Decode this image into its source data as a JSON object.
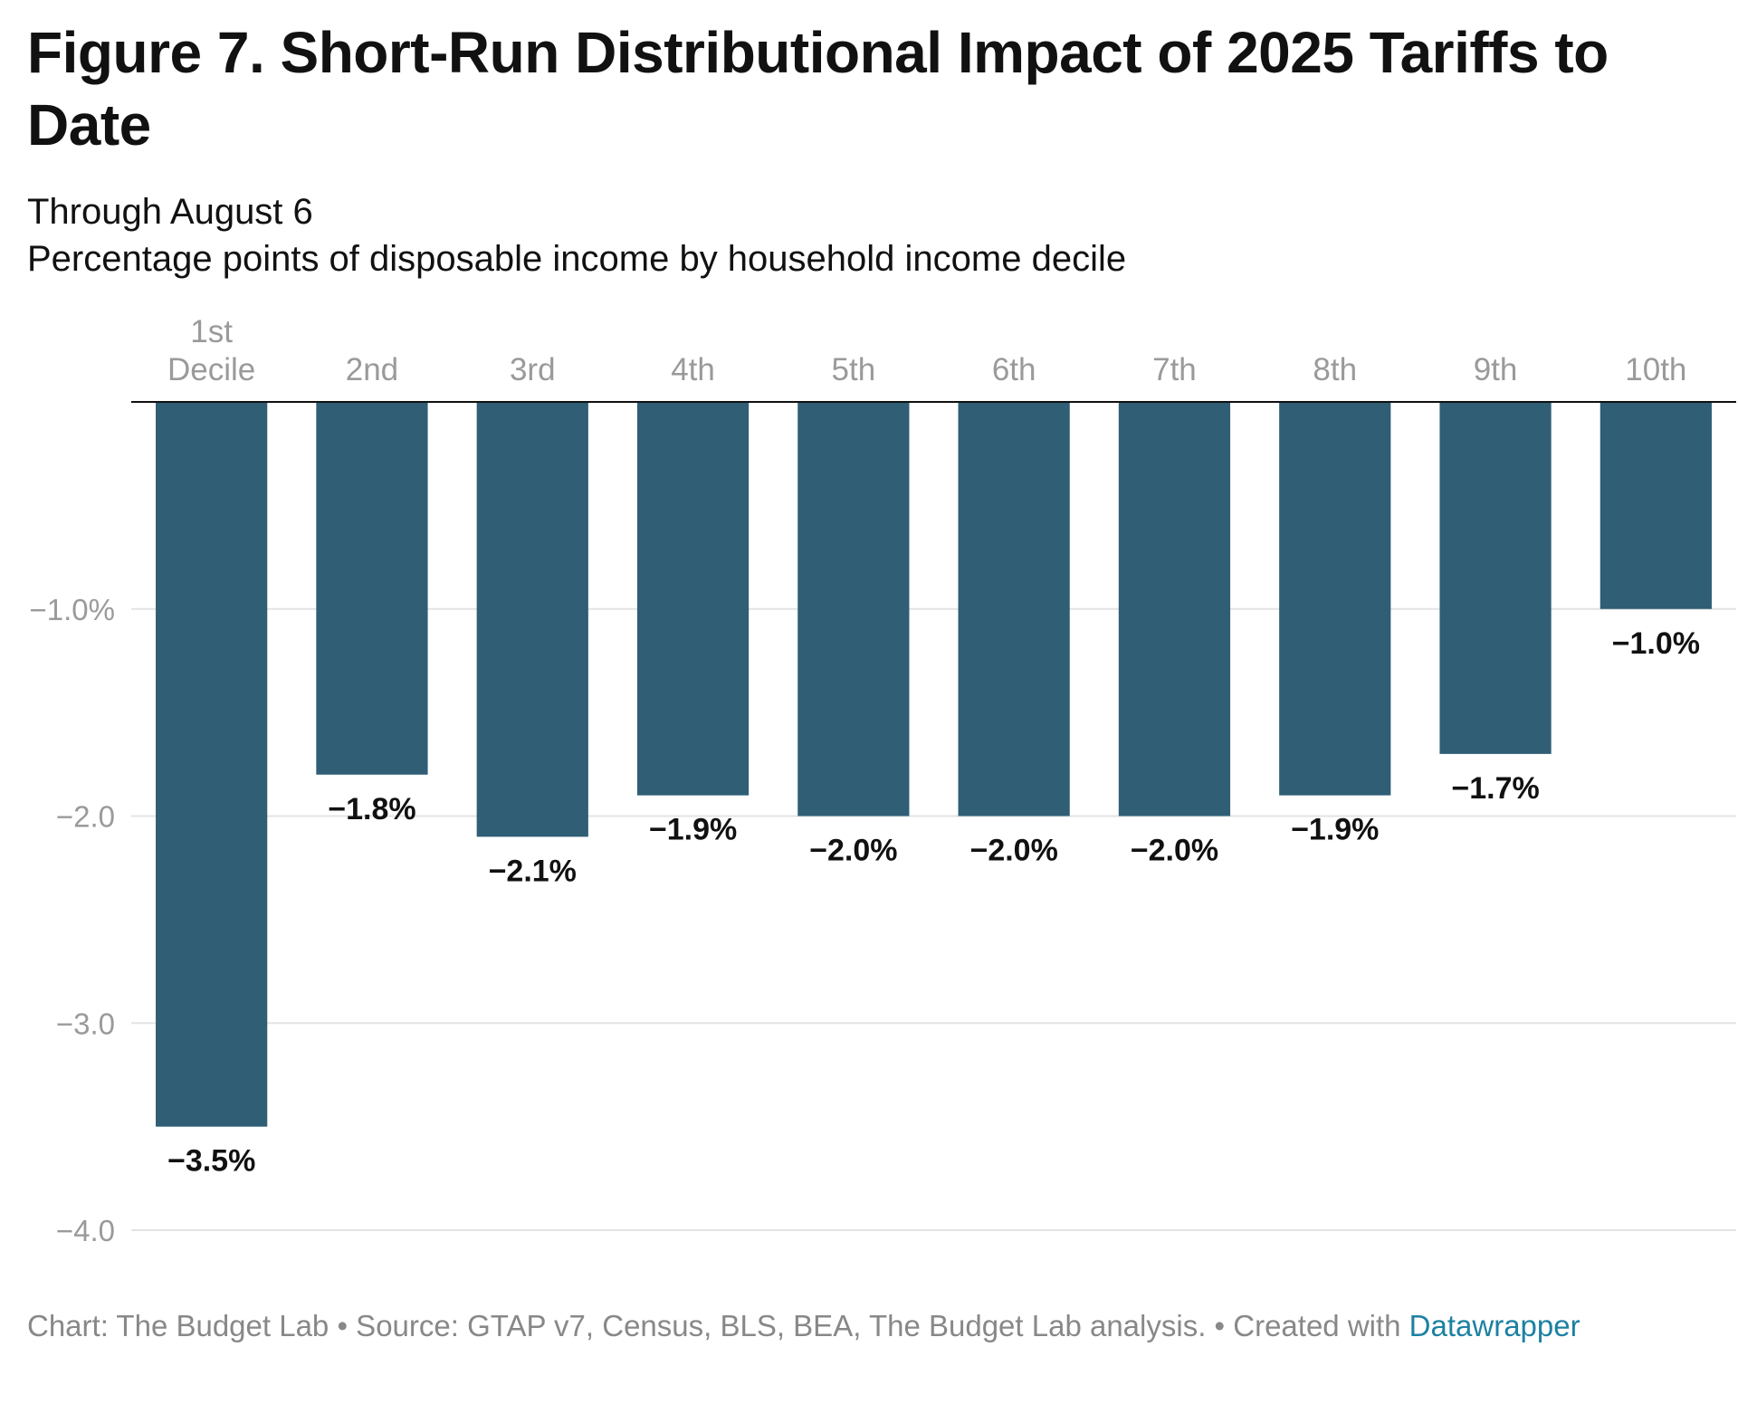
{
  "title": "Figure 7. Short-Run Distributional Impact of 2025 Tariffs to Date",
  "subtitle_line1": "Through August 6",
  "subtitle_line2": "Percentage points of disposable income by household income decile",
  "footer": {
    "text": "Chart: The Budget Lab • Source: GTAP v7, Census, BLS, BEA, The Budget Lab analysis. • Created with ",
    "link": "Datawrapper"
  },
  "colors": {
    "bar": "#2f5e75",
    "grid": "#e3e3e3",
    "baseline": "#111111",
    "axis_text": "#9a9a9a",
    "link": "#1d81a2"
  },
  "chart_data": {
    "type": "bar",
    "categories": [
      [
        "1st",
        "Decile"
      ],
      [
        "2nd"
      ],
      [
        "3rd"
      ],
      [
        "4th"
      ],
      [
        "5th"
      ],
      [
        "6th"
      ],
      [
        "7th"
      ],
      [
        "8th"
      ],
      [
        "9th"
      ],
      [
        "10th"
      ]
    ],
    "values": [
      -3.5,
      -1.8,
      -2.1,
      -1.9,
      -2.0,
      -2.0,
      -2.0,
      -1.9,
      -1.7,
      -1.0
    ],
    "value_labels": [
      "−3.5%",
      "−1.8%",
      "−2.1%",
      "−1.9%",
      "−2.0%",
      "−2.0%",
      "−2.0%",
      "−1.9%",
      "−1.7%",
      "−1.0%"
    ],
    "yticks": [
      -1.0,
      -2.0,
      -3.0,
      -4.0
    ],
    "ytick_labels": [
      "−1.0%",
      "−2.0",
      "−3.0",
      "−4.0"
    ],
    "ylim": [
      -4.0,
      0
    ],
    "xlabel": "",
    "ylabel": "",
    "grid": true,
    "category_labels_position": "top"
  }
}
